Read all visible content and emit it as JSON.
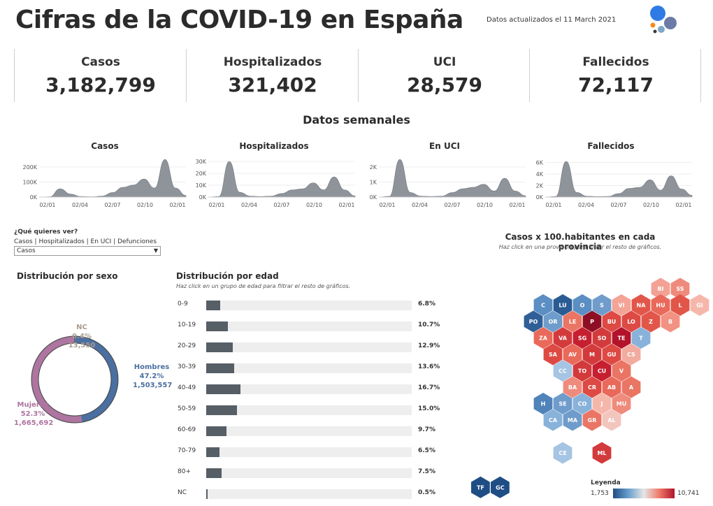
{
  "header": {
    "title": "Cifras de la COVID-19 en España",
    "updated": "Datos actualizados el 11 March 2021"
  },
  "kpis": [
    {
      "label": "Casos",
      "value": "3,182,799"
    },
    {
      "label": "Hospitalizados",
      "value": "321,402"
    },
    {
      "label": "UCI",
      "value": "28,579"
    },
    {
      "label": "Fallecidos",
      "value": "72,117"
    }
  ],
  "weekly": {
    "title": "Datos semanales",
    "color": "#8e949a"
  },
  "chart_data": [
    {
      "type": "area",
      "title": "Casos",
      "x": [
        "02/01",
        "02/02",
        "02/03",
        "02/04",
        "02/05",
        "02/06",
        "02/07",
        "02/08",
        "02/09",
        "02/10",
        "02/11",
        "02/12",
        "02/01",
        "02/02",
        "02/03"
      ],
      "x_ticks": [
        "02/01",
        "02/04",
        "02/07",
        "02/10",
        "02/01"
      ],
      "y_ticks": [
        "200K",
        "100K",
        "0K"
      ],
      "y_tick_values": [
        200000,
        100000,
        0
      ],
      "ylim": [
        0,
        260000
      ],
      "values": [
        0,
        2000,
        55000,
        20000,
        3000,
        2000,
        6000,
        30000,
        65000,
        80000,
        120000,
        60000,
        250000,
        60000,
        10000
      ]
    },
    {
      "type": "area",
      "title": "Hospitalizados",
      "x": [
        "02/01",
        "02/02",
        "02/03",
        "02/04",
        "02/05",
        "02/06",
        "02/07",
        "02/08",
        "02/09",
        "02/10",
        "02/11",
        "02/12",
        "02/01",
        "02/02",
        "02/03"
      ],
      "x_ticks": [
        "02/01",
        "02/04",
        "02/07",
        "02/10",
        "02/01"
      ],
      "y_ticks": [
        "30K",
        "20K",
        "10K",
        "0K"
      ],
      "y_tick_values": [
        30000,
        20000,
        10000,
        0
      ],
      "ylim": [
        0,
        33000
      ],
      "values": [
        0,
        500,
        30000,
        4000,
        800,
        500,
        800,
        3000,
        6000,
        7000,
        12000,
        6000,
        17000,
        6000,
        1000
      ]
    },
    {
      "type": "area",
      "title": "En UCI",
      "x": [
        "02/01",
        "02/02",
        "02/03",
        "02/04",
        "02/05",
        "02/06",
        "02/07",
        "02/08",
        "02/09",
        "02/10",
        "02/11",
        "02/12",
        "02/01",
        "02/02",
        "02/03"
      ],
      "x_ticks": [
        "02/01",
        "02/04",
        "02/07",
        "02/10",
        "02/01"
      ],
      "y_ticks": [
        "2K",
        "1K",
        "0K"
      ],
      "y_tick_values": [
        2000,
        1000,
        0
      ],
      "ylim": [
        0,
        2600
      ],
      "values": [
        0,
        50,
        2500,
        300,
        60,
        40,
        60,
        300,
        550,
        650,
        850,
        400,
        1250,
        400,
        80
      ]
    },
    {
      "type": "area",
      "title": "Fallecidos",
      "x": [
        "02/01",
        "02/02",
        "02/03",
        "02/04",
        "02/05",
        "02/06",
        "02/07",
        "02/08",
        "02/09",
        "02/10",
        "02/11",
        "02/12",
        "02/01",
        "02/02",
        "02/03"
      ],
      "x_ticks": [
        "02/01",
        "02/04",
        "02/07",
        "02/10",
        "02/01"
      ],
      "y_ticks": [
        "6K",
        "4K",
        "2K",
        "0K"
      ],
      "y_tick_values": [
        6000,
        4000,
        2000,
        0
      ],
      "ylim": [
        0,
        6800
      ],
      "values": [
        0,
        100,
        6200,
        800,
        150,
        80,
        120,
        600,
        1500,
        1700,
        3000,
        1200,
        3700,
        1400,
        300
      ]
    }
  ],
  "selector": {
    "question": "¿Qué quieres ver?",
    "options": "Casos | Hospitalizados | En UCI | Defunciones",
    "selected": "Casos",
    "arrow": "▼"
  },
  "sex": {
    "title": "Distribución por sexo",
    "segments": [
      {
        "name": "Hombres",
        "pct": "47.2%",
        "count": "1,503,557",
        "value": 47.2,
        "color": "#4a6fa0"
      },
      {
        "name": "Mujeres",
        "pct": "52.3%",
        "count": "1,665,692",
        "value": 52.3,
        "color": "#ad75a0"
      },
      {
        "name": "NC",
        "pct": "0.4%",
        "count": "13,550",
        "value": 0.4,
        "color": "#555555"
      }
    ],
    "nc_label_color": "#a89c91"
  },
  "age": {
    "title": "Distribución por edad",
    "subtitle": "Haz click en un grupo de edad para filtrar el resto de gráficos.",
    "rows": [
      {
        "label": "0-9",
        "pct": "6.8%",
        "value": 6.8
      },
      {
        "label": "10-19",
        "pct": "10.7%",
        "value": 10.7
      },
      {
        "label": "20-29",
        "pct": "12.9%",
        "value": 12.9
      },
      {
        "label": "30-39",
        "pct": "13.6%",
        "value": 13.6
      },
      {
        "label": "40-49",
        "pct": "16.7%",
        "value": 16.7
      },
      {
        "label": "50-59",
        "pct": "15.0%",
        "value": 15.0
      },
      {
        "label": "60-69",
        "pct": "9.7%",
        "value": 9.7
      },
      {
        "label": "70-79",
        "pct": "6.5%",
        "value": 6.5
      },
      {
        "label": "80+",
        "pct": "7.5%",
        "value": 7.5
      },
      {
        "label": "NC",
        "pct": "0.5%",
        "value": 0.5
      }
    ],
    "max_value": 100
  },
  "map": {
    "title": "Casos x 100.habitantes en cada provincia",
    "subtitle": "Haz click en una provincia para filtrar el resto de gráficos.",
    "legend_title": "Leyenda",
    "legend_min": "1,753",
    "legend_max": "10,741",
    "hexes": [
      {
        "code": "BI",
        "color": "#f3a195"
      },
      {
        "code": "SS",
        "color": "#ef8b7c"
      },
      {
        "code": "C",
        "color": "#5b8ec2"
      },
      {
        "code": "LU",
        "color": "#2a5b93"
      },
      {
        "code": "O",
        "color": "#5b8ec2"
      },
      {
        "code": "S",
        "color": "#6f9ccb"
      },
      {
        "code": "VI",
        "color": "#f4a497"
      },
      {
        "code": "NA",
        "color": "#e2564a"
      },
      {
        "code": "HU",
        "color": "#e9695a"
      },
      {
        "code": "L",
        "color": "#e2564a"
      },
      {
        "code": "GI",
        "color": "#f6b7ab"
      },
      {
        "code": "PO",
        "color": "#2f5f96"
      },
      {
        "code": "OR",
        "color": "#6f9ccb"
      },
      {
        "code": "LE",
        "color": "#ea7565"
      },
      {
        "code": "P",
        "color": "#8e0f23"
      },
      {
        "code": "BU",
        "color": "#dd4a43"
      },
      {
        "code": "LO",
        "color": "#dd4a43"
      },
      {
        "code": "Z",
        "color": "#e2564a"
      },
      {
        "code": "B",
        "color": "#f29282"
      },
      {
        "code": "ZA",
        "color": "#e9695a"
      },
      {
        "code": "VA",
        "color": "#d33a3c"
      },
      {
        "code": "SG",
        "color": "#c61f30"
      },
      {
        "code": "SO",
        "color": "#d33a3c"
      },
      {
        "code": "TE",
        "color": "#b3122b"
      },
      {
        "code": "T",
        "color": "#88b2d9"
      },
      {
        "code": "SA",
        "color": "#dd4a43"
      },
      {
        "code": "AV",
        "color": "#e9695a"
      },
      {
        "code": "M",
        "color": "#d33a3c"
      },
      {
        "code": "GU",
        "color": "#dd4a43"
      },
      {
        "code": "CS",
        "color": "#f2ab9f"
      },
      {
        "code": "PM",
        "color": "#5b8ec2"
      },
      {
        "code": "CC",
        "color": "#a6c4e3"
      },
      {
        "code": "TO",
        "color": "#d33a3c"
      },
      {
        "code": "CU",
        "color": "#c61f30"
      },
      {
        "code": "V",
        "color": "#ea7565"
      },
      {
        "code": "BA",
        "color": "#ef8b7c"
      },
      {
        "code": "CR",
        "color": "#dd4a43"
      },
      {
        "code": "AB",
        "color": "#e9695a"
      },
      {
        "code": "A",
        "color": "#ea7565"
      },
      {
        "code": "H",
        "color": "#4f83ba"
      },
      {
        "code": "SE",
        "color": "#6f9ccb"
      },
      {
        "code": "CO",
        "color": "#88b2d9"
      },
      {
        "code": "J",
        "color": "#f6b7ab"
      },
      {
        "code": "MU",
        "color": "#ef8b7c"
      },
      {
        "code": "CA",
        "color": "#88b2d9"
      },
      {
        "code": "MA",
        "color": "#6f9ccb"
      },
      {
        "code": "GR",
        "color": "#ea7565"
      },
      {
        "code": "AL",
        "color": "#f2c5bd"
      },
      {
        "code": "CE",
        "color": "#a6c4e3"
      },
      {
        "code": "ML",
        "color": "#d33a3c"
      },
      {
        "code": "TF",
        "color": "#1f4e85"
      },
      {
        "code": "GC",
        "color": "#1f4e85"
      }
    ]
  }
}
